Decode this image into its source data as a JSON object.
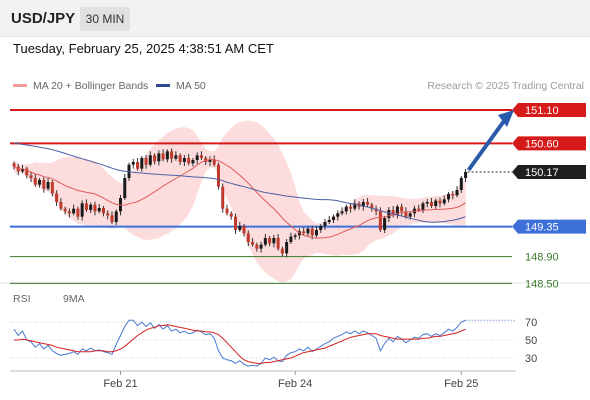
{
  "header": {
    "symbol": "USD/JPY",
    "timeframe": "30 MIN",
    "datetime": "Tuesday, February 25, 2025 4:38:51 AM CET"
  },
  "legend": {
    "ma20_label": "MA 20 + Bollinger Bands",
    "ma50_label": "MA 50",
    "credit": "Research © 2025 Trading Central"
  },
  "rsi_legend": {
    "rsi_label": "RSI",
    "ma_label": "9MA"
  },
  "colors": {
    "up": "#1a1a1a",
    "down": "#c0392b",
    "ma20": "#e05b5b",
    "bollinger_fill": "#fbd6d6",
    "ma50": "#4a5fa5",
    "resistance": "#d61a1a",
    "support": "#3c6fd8",
    "target": "#3a7a2a",
    "arrow": "#2a5aa8",
    "rsi": "#4a78d0",
    "rsi_ma": "#d62020"
  },
  "chart_data": {
    "type": "candlestick",
    "price_levels": [
      {
        "value": 151.1,
        "label": "151.10",
        "kind": "resistance"
      },
      {
        "value": 150.6,
        "label": "150.60",
        "kind": "resistance"
      },
      {
        "value": 150.17,
        "label": "150.17",
        "kind": "current"
      },
      {
        "value": 149.35,
        "label": "149.35",
        "kind": "support"
      },
      {
        "value": 148.9,
        "label": "148.90",
        "kind": "target"
      },
      {
        "value": 148.5,
        "label": "148.50",
        "kind": "target"
      }
    ],
    "x_ticks": [
      {
        "index": 25,
        "label": "Feb 21"
      },
      {
        "index": 66,
        "label": "Feb 24"
      },
      {
        "index": 105,
        "label": "Feb 25"
      }
    ],
    "rsi_ticks": [
      70,
      50,
      30
    ],
    "close": [
      150.25,
      150.18,
      150.22,
      150.12,
      150.08,
      149.98,
      150.05,
      149.92,
      150.02,
      149.85,
      149.72,
      149.62,
      149.58,
      149.55,
      149.62,
      149.5,
      149.7,
      149.6,
      149.68,
      149.58,
      149.63,
      149.55,
      149.52,
      149.42,
      149.58,
      149.78,
      150.08,
      150.28,
      150.32,
      150.22,
      150.38,
      150.28,
      150.42,
      150.33,
      150.45,
      150.36,
      150.48,
      150.37,
      150.42,
      150.32,
      150.38,
      150.3,
      150.35,
      150.42,
      150.38,
      150.32,
      150.36,
      150.28,
      149.95,
      149.62,
      149.55,
      149.5,
      149.3,
      149.36,
      149.25,
      149.12,
      149.08,
      149.02,
      149.08,
      149.18,
      149.1,
      149.18,
      149.02,
      148.95,
      149.12,
      149.2,
      149.22,
      149.28,
      149.25,
      149.32,
      149.22,
      149.3,
      149.36,
      149.42,
      149.45,
      149.5,
      149.55,
      149.58,
      149.65,
      149.62,
      149.7,
      149.65,
      149.72,
      149.68,
      149.62,
      149.58,
      149.3,
      149.48,
      149.6,
      149.52,
      149.65,
      149.58,
      149.5,
      149.55,
      149.62,
      149.6,
      149.7,
      149.72,
      149.66,
      149.74,
      149.7,
      149.76,
      149.84,
      149.82,
      149.9,
      150.08,
      150.17
    ],
    "rsi": [
      62,
      55,
      60,
      50,
      48,
      42,
      46,
      40,
      44,
      38,
      35,
      33,
      34,
      35,
      37,
      34,
      40,
      38,
      41,
      38,
      39,
      37,
      36,
      34,
      45,
      55,
      65,
      72,
      72,
      66,
      70,
      65,
      69,
      63,
      67,
      62,
      66,
      60,
      62,
      58,
      60,
      57,
      58,
      61,
      59,
      56,
      57,
      52,
      38,
      30,
      28,
      27,
      24,
      27,
      23,
      21,
      22,
      21,
      24,
      30,
      28,
      31,
      27,
      26,
      33,
      36,
      37,
      40,
      38,
      42,
      37,
      40,
      43,
      46,
      48,
      52,
      54,
      56,
      59,
      57,
      60,
      57,
      60,
      58,
      55,
      52,
      38,
      46,
      52,
      48,
      54,
      51,
      47,
      50,
      53,
      52,
      56,
      57,
      54,
      57,
      55,
      58,
      62,
      60,
      64,
      70,
      72
    ],
    "rsi_ma": [
      50,
      50,
      51,
      50,
      49,
      48,
      47,
      46,
      45,
      44,
      42,
      41,
      40,
      39,
      38,
      37,
      37,
      37,
      37,
      38,
      38,
      38,
      37,
      37,
      38,
      40,
      43,
      47,
      51,
      55,
      58,
      61,
      63,
      64,
      66,
      66,
      67,
      66,
      65,
      64,
      63,
      62,
      61,
      60,
      60,
      59,
      59,
      58,
      56,
      52,
      47,
      42,
      37,
      32,
      28,
      26,
      25,
      24,
      24,
      25,
      25,
      26,
      27,
      28,
      29,
      30,
      32,
      34,
      36,
      37,
      38,
      39,
      40,
      41,
      43,
      45,
      47,
      49,
      51,
      53,
      54,
      55,
      56,
      57,
      57,
      57,
      55,
      54,
      53,
      52,
      51,
      51,
      51,
      51,
      51,
      51,
      52,
      52,
      53,
      54,
      54,
      55,
      56,
      57,
      58,
      60,
      62
    ]
  }
}
